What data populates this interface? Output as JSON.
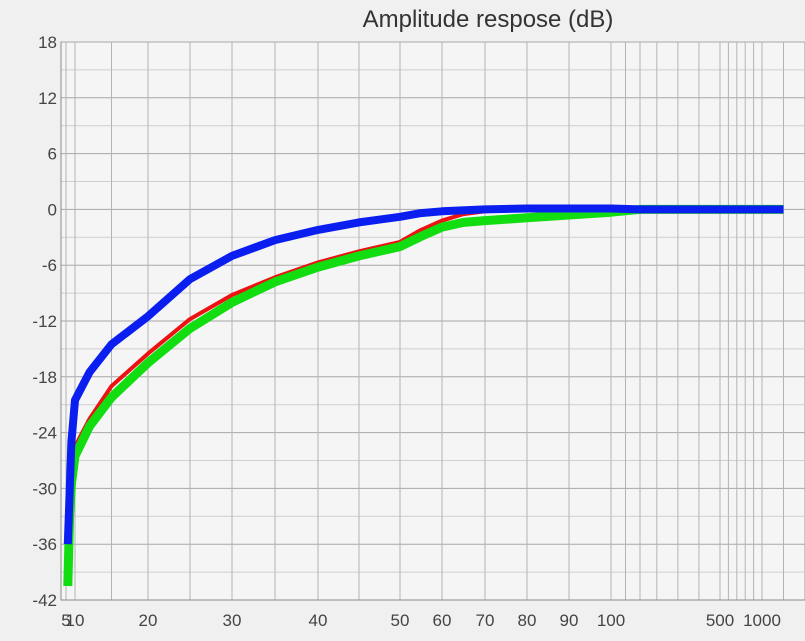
{
  "chart_data": {
    "type": "line",
    "title": "Amplitude respose (dB)",
    "xlabel": "",
    "ylabel": "",
    "ylim": [
      -42,
      18
    ],
    "yticks": [
      {
        "v": 18,
        "label": "18"
      },
      {
        "v": 12,
        "label": "12"
      },
      {
        "v": 6,
        "label": "6"
      },
      {
        "v": 0,
        "label": "0"
      },
      {
        "v": -6,
        "label": "-6"
      },
      {
        "v": -12,
        "label": "-12"
      },
      {
        "v": -18,
        "label": "-18"
      },
      {
        "v": -24,
        "label": "-24"
      },
      {
        "v": -30,
        "label": "-30"
      },
      {
        "v": -36,
        "label": "-36"
      },
      {
        "v": -42,
        "label": "-42"
      }
    ],
    "xticks": [
      {
        "v": 5,
        "label": "5"
      },
      {
        "v": 10,
        "label": "10"
      },
      {
        "v": 20,
        "label": "20"
      },
      {
        "v": 30,
        "label": "30"
      },
      {
        "v": 40,
        "label": "40"
      },
      {
        "v": 50,
        "label": "50"
      },
      {
        "v": 60,
        "label": "60"
      },
      {
        "v": 70,
        "label": "70"
      },
      {
        "v": 80,
        "label": "80"
      },
      {
        "v": 90,
        "label": "90"
      },
      {
        "v": 100,
        "label": "100"
      },
      {
        "v": 500,
        "label": "500"
      },
      {
        "v": 1000,
        "label": "1000"
      }
    ],
    "grid": true,
    "legend": "none",
    "series": [
      {
        "color": "#ee1111",
        "x": [
          6,
          7,
          8,
          10,
          12,
          15,
          20,
          25,
          30,
          35,
          40,
          45,
          50,
          55,
          60,
          65,
          70,
          80,
          90,
          100,
          120,
          500,
          1000,
          1500
        ],
        "y": [
          -39,
          -32,
          -29,
          -25.5,
          -22.5,
          -19,
          -15.5,
          -11.8,
          -9.2,
          -7.3,
          -5.7,
          -4.5,
          -3.5,
          -2.2,
          -1.2,
          -0.5,
          -0.2,
          0,
          0,
          0,
          0,
          0,
          0,
          0
        ]
      },
      {
        "color": "#11dd11",
        "x": [
          6,
          7,
          8,
          10,
          12,
          15,
          20,
          25,
          30,
          35,
          40,
          45,
          50,
          55,
          60,
          65,
          70,
          80,
          90,
          100,
          120,
          500,
          1000,
          1500
        ],
        "y": [
          -40.5,
          -33,
          -29.5,
          -26.5,
          -23.3,
          -20.2,
          -16.5,
          -12.8,
          -10,
          -7.8,
          -6.2,
          -5,
          -4,
          -2.9,
          -1.9,
          -1.4,
          -1.2,
          -0.9,
          -0.6,
          -0.3,
          0,
          0,
          0,
          0
        ]
      },
      {
        "color": "#0a1ef0",
        "x": [
          6,
          7,
          8,
          10,
          12,
          15,
          20,
          25,
          30,
          35,
          40,
          45,
          50,
          55,
          60,
          70,
          80,
          90,
          100,
          120,
          500,
          1000,
          1500
        ],
        "y": [
          -36,
          -30.5,
          -25,
          -20.5,
          -17.5,
          -14.5,
          -11.5,
          -7.5,
          -5,
          -3.3,
          -2.2,
          -1.4,
          -0.8,
          -0.4,
          -0.2,
          0,
          0.1,
          0.1,
          0.1,
          0,
          0,
          0,
          0
        ]
      }
    ]
  }
}
